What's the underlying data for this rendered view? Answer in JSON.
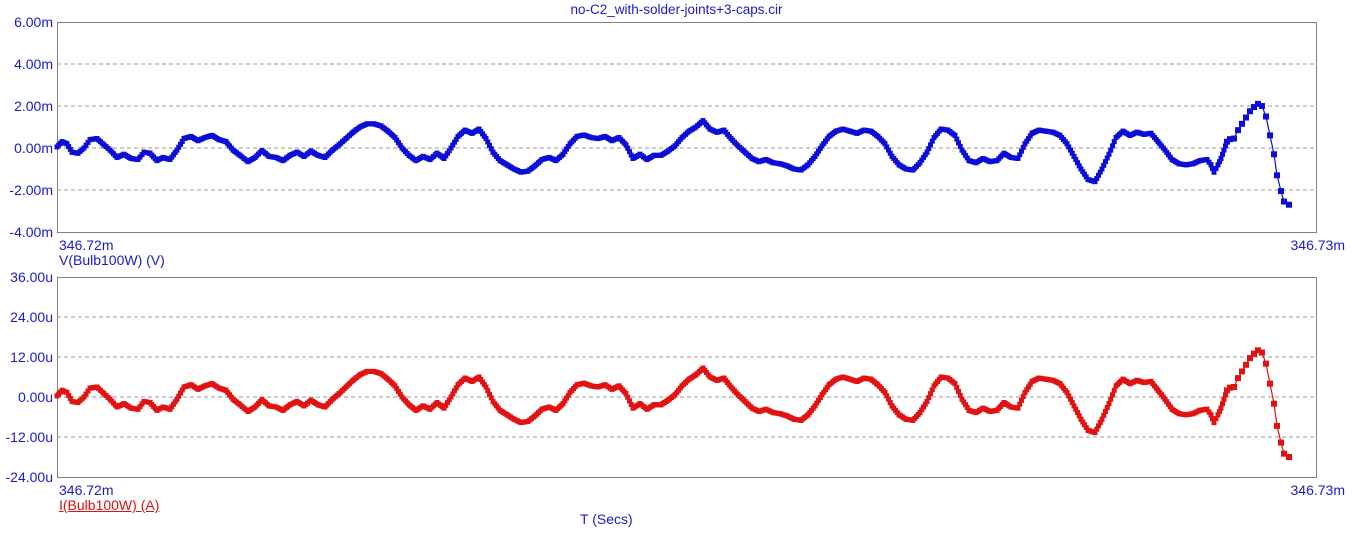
{
  "window": {
    "background": "#ffffff"
  },
  "colors": {
    "label_blue": "#1a1acc",
    "trace_blue": "#0d0dd8",
    "trace_red": "#e01212",
    "legend_red": "#dd1111",
    "grid_dash": "#999999",
    "plot_border": "#808080"
  },
  "chart_data": {
    "type": "line",
    "title": "no-C2_with-solder-joints+3-caps.cir",
    "x_axis": {
      "start_label": "346.72m",
      "end_label": "346.73m",
      "title": "T (Secs)"
    },
    "grid": "horizontal-dashed",
    "legend_position": "below-left-of-each-panel",
    "panels": [
      {
        "legend": "V(Bulb100W) (V)",
        "signal": "V(Bulb100W)",
        "unit": "V",
        "y_ticks": [
          "6.00m",
          "4.00m",
          "2.00m",
          "0.00m",
          "-2.00m",
          "-4.00m"
        ],
        "y_tick_values_mV": [
          6,
          4,
          2,
          0,
          -2,
          -4
        ],
        "ylim_mV": [
          -4,
          6
        ],
        "trace_color": "#0d0dd8",
        "units_per_base_mV": 1
      },
      {
        "legend": "I(Bulb100W) (A)",
        "signal": "I(Bulb100W)",
        "unit": "A",
        "y_ticks": [
          "36.00u",
          "24.00u",
          "12.00u",
          "0.00u",
          "-12.00u",
          "-24.00u"
        ],
        "y_tick_values_uA": [
          36,
          24,
          12,
          0,
          -12,
          -24
        ],
        "ylim_uA": [
          -24,
          36
        ],
        "trace_color": "#e01212",
        "units_per_base_mV": 6.667
      }
    ],
    "waveform_note": "Both panels show the same waveform: base values in mV for V(Bulb100W); I(Bulb100W) = base x 6.667 uA per mV. x is plot-pixel position mapping 346.72m..346.73m onto 57..1317.",
    "sparse_markers_from_x": 1227,
    "waveform_mV": [
      [
        57,
        0.05
      ],
      [
        62,
        0.3
      ],
      [
        67,
        0.2
      ],
      [
        72,
        -0.2
      ],
      [
        78,
        -0.25
      ],
      [
        84,
        0.0
      ],
      [
        90,
        0.4
      ],
      [
        97,
        0.45
      ],
      [
        104,
        0.15
      ],
      [
        110,
        -0.1
      ],
      [
        117,
        -0.45
      ],
      [
        124,
        -0.3
      ],
      [
        131,
        -0.5
      ],
      [
        138,
        -0.55
      ],
      [
        144,
        -0.2
      ],
      [
        150,
        -0.25
      ],
      [
        157,
        -0.6
      ],
      [
        163,
        -0.45
      ],
      [
        170,
        -0.55
      ],
      [
        177,
        -0.1
      ],
      [
        184,
        0.45
      ],
      [
        191,
        0.55
      ],
      [
        198,
        0.35
      ],
      [
        205,
        0.5
      ],
      [
        212,
        0.6
      ],
      [
        219,
        0.4
      ],
      [
        226,
        0.3
      ],
      [
        233,
        -0.1
      ],
      [
        240,
        -0.35
      ],
      [
        248,
        -0.65
      ],
      [
        255,
        -0.45
      ],
      [
        262,
        -0.12
      ],
      [
        269,
        -0.4
      ],
      [
        276,
        -0.45
      ],
      [
        283,
        -0.6
      ],
      [
        290,
        -0.35
      ],
      [
        297,
        -0.2
      ],
      [
        304,
        -0.4
      ],
      [
        311,
        -0.15
      ],
      [
        318,
        -0.35
      ],
      [
        325,
        -0.45
      ],
      [
        332,
        -0.12
      ],
      [
        339,
        0.15
      ],
      [
        346,
        0.45
      ],
      [
        353,
        0.75
      ],
      [
        360,
        1.0
      ],
      [
        367,
        1.15
      ],
      [
        374,
        1.15
      ],
      [
        381,
        1.05
      ],
      [
        388,
        0.8
      ],
      [
        395,
        0.5
      ],
      [
        402,
        0.0
      ],
      [
        409,
        -0.35
      ],
      [
        416,
        -0.6
      ],
      [
        423,
        -0.4
      ],
      [
        430,
        -0.55
      ],
      [
        437,
        -0.25
      ],
      [
        444,
        -0.5
      ],
      [
        451,
        0.0
      ],
      [
        458,
        0.55
      ],
      [
        465,
        0.85
      ],
      [
        472,
        0.7
      ],
      [
        479,
        0.9
      ],
      [
        486,
        0.45
      ],
      [
        493,
        -0.2
      ],
      [
        500,
        -0.6
      ],
      [
        507,
        -0.8
      ],
      [
        514,
        -1.0
      ],
      [
        521,
        -1.15
      ],
      [
        528,
        -1.1
      ],
      [
        535,
        -0.85
      ],
      [
        542,
        -0.55
      ],
      [
        549,
        -0.45
      ],
      [
        556,
        -0.6
      ],
      [
        563,
        -0.3
      ],
      [
        570,
        0.2
      ],
      [
        577,
        0.55
      ],
      [
        584,
        0.62
      ],
      [
        591,
        0.5
      ],
      [
        598,
        0.45
      ],
      [
        605,
        0.55
      ],
      [
        612,
        0.35
      ],
      [
        619,
        0.5
      ],
      [
        626,
        0.15
      ],
      [
        633,
        -0.5
      ],
      [
        640,
        -0.3
      ],
      [
        647,
        -0.55
      ],
      [
        654,
        -0.35
      ],
      [
        661,
        -0.35
      ],
      [
        668,
        -0.15
      ],
      [
        675,
        0.1
      ],
      [
        682,
        0.5
      ],
      [
        689,
        0.8
      ],
      [
        696,
        1.0
      ],
      [
        703,
        1.3
      ],
      [
        710,
        0.9
      ],
      [
        717,
        0.75
      ],
      [
        724,
        0.85
      ],
      [
        731,
        0.45
      ],
      [
        738,
        0.1
      ],
      [
        745,
        -0.2
      ],
      [
        752,
        -0.5
      ],
      [
        759,
        -0.65
      ],
      [
        766,
        -0.55
      ],
      [
        773,
        -0.7
      ],
      [
        780,
        -0.75
      ],
      [
        787,
        -0.85
      ],
      [
        794,
        -1.0
      ],
      [
        801,
        -1.05
      ],
      [
        808,
        -0.8
      ],
      [
        815,
        -0.4
      ],
      [
        822,
        0.1
      ],
      [
        829,
        0.55
      ],
      [
        836,
        0.8
      ],
      [
        843,
        0.9
      ],
      [
        850,
        0.8
      ],
      [
        857,
        0.7
      ],
      [
        864,
        0.85
      ],
      [
        871,
        0.8
      ],
      [
        878,
        0.55
      ],
      [
        885,
        0.2
      ],
      [
        892,
        -0.4
      ],
      [
        899,
        -0.8
      ],
      [
        906,
        -1.0
      ],
      [
        913,
        -1.05
      ],
      [
        920,
        -0.7
      ],
      [
        927,
        -0.2
      ],
      [
        934,
        0.5
      ],
      [
        941,
        0.9
      ],
      [
        948,
        0.85
      ],
      [
        955,
        0.6
      ],
      [
        962,
        -0.1
      ],
      [
        969,
        -0.6
      ],
      [
        976,
        -0.7
      ],
      [
        983,
        -0.5
      ],
      [
        990,
        -0.65
      ],
      [
        997,
        -0.6
      ],
      [
        1004,
        -0.25
      ],
      [
        1011,
        -0.45
      ],
      [
        1018,
        -0.5
      ],
      [
        1025,
        0.2
      ],
      [
        1032,
        0.7
      ],
      [
        1039,
        0.85
      ],
      [
        1046,
        0.8
      ],
      [
        1053,
        0.75
      ],
      [
        1060,
        0.6
      ],
      [
        1067,
        0.2
      ],
      [
        1074,
        -0.4
      ],
      [
        1081,
        -1.0
      ],
      [
        1088,
        -1.5
      ],
      [
        1095,
        -1.6
      ],
      [
        1102,
        -1.0
      ],
      [
        1109,
        -0.3
      ],
      [
        1116,
        0.5
      ],
      [
        1123,
        0.8
      ],
      [
        1130,
        0.6
      ],
      [
        1137,
        0.75
      ],
      [
        1144,
        0.65
      ],
      [
        1151,
        0.7
      ],
      [
        1158,
        0.3
      ],
      [
        1165,
        -0.1
      ],
      [
        1172,
        -0.55
      ],
      [
        1179,
        -0.75
      ],
      [
        1186,
        -0.8
      ],
      [
        1193,
        -0.75
      ],
      [
        1200,
        -0.6
      ],
      [
        1207,
        -0.55
      ],
      [
        1211,
        -0.8
      ],
      [
        1214,
        -1.15
      ],
      [
        1218,
        -0.8
      ],
      [
        1221,
        -0.5
      ],
      [
        1224,
        -0.1
      ],
      [
        1227,
        0.3
      ],
      [
        1230,
        0.42
      ],
      [
        1234,
        0.45
      ],
      [
        1238,
        0.85
      ],
      [
        1242,
        1.15
      ],
      [
        1246,
        1.45
      ],
      [
        1250,
        1.75
      ],
      [
        1254,
        1.95
      ],
      [
        1258,
        2.1
      ],
      [
        1262,
        2.0
      ],
      [
        1266,
        1.5
      ],
      [
        1270,
        0.6
      ],
      [
        1274,
        -0.3
      ],
      [
        1277,
        -1.3
      ],
      [
        1281,
        -2.05
      ],
      [
        1284,
        -2.55
      ],
      [
        1289,
        -2.7
      ]
    ]
  }
}
